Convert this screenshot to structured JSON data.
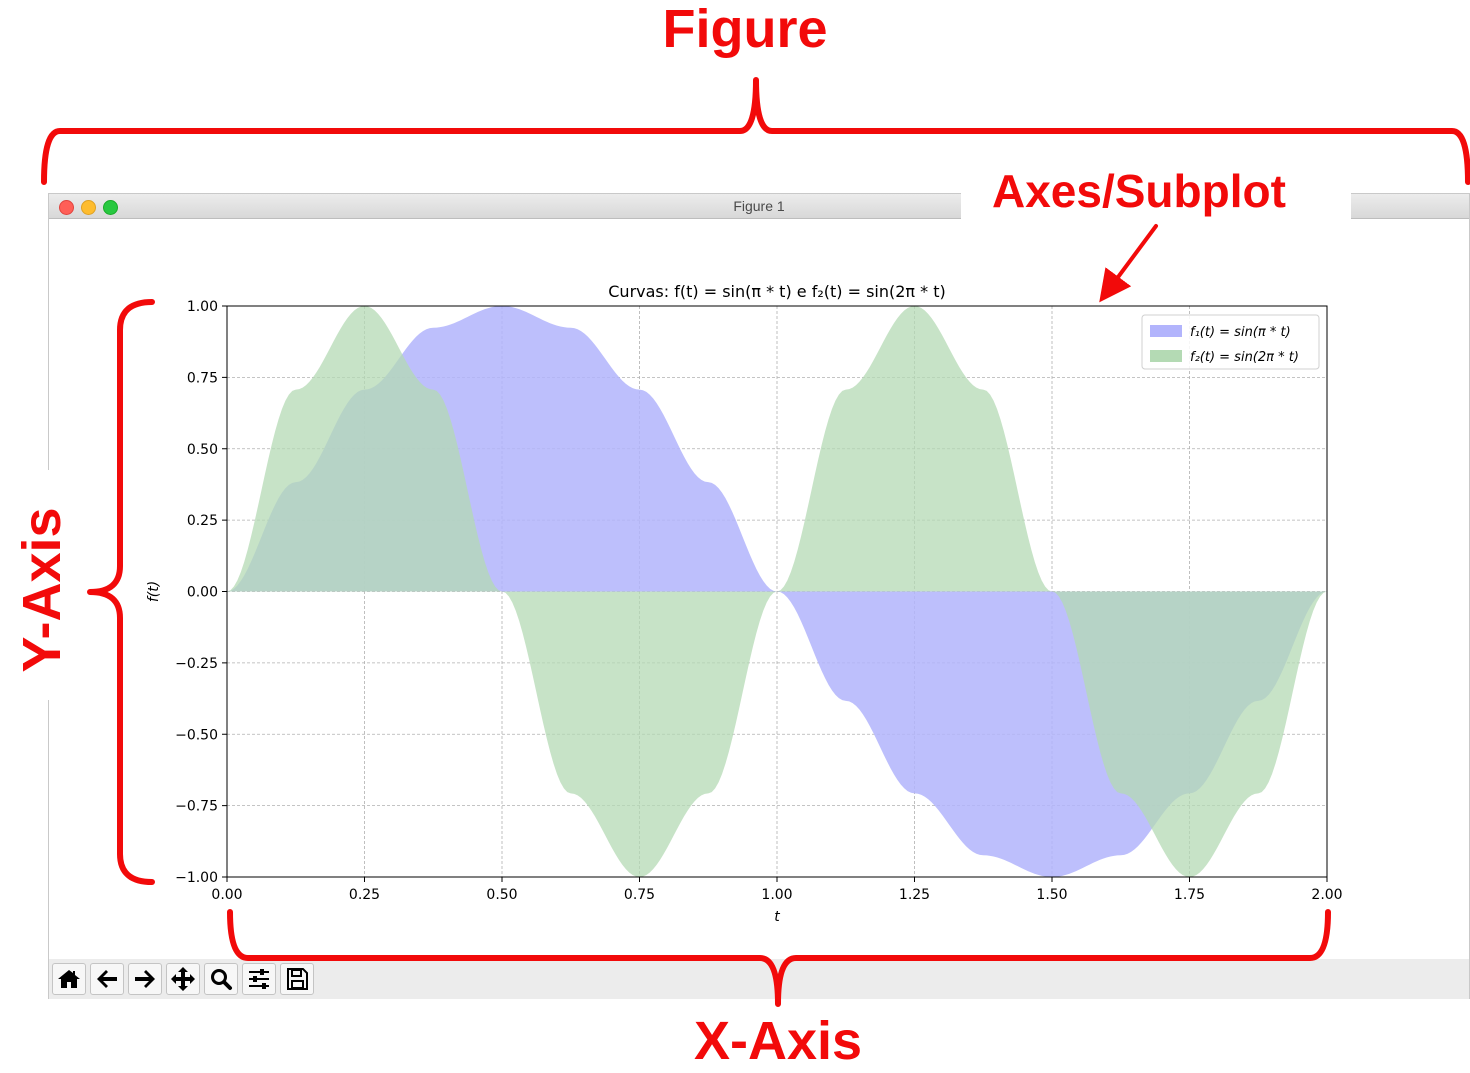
{
  "window": {
    "title": "Figure 1",
    "controls": [
      "close-icon",
      "minimize-icon",
      "maximize-icon"
    ]
  },
  "toolbar": {
    "buttons": [
      {
        "name": "home-button",
        "icon": "home-icon"
      },
      {
        "name": "back-button",
        "icon": "arrow-left-icon"
      },
      {
        "name": "forward-button",
        "icon": "arrow-right-icon"
      },
      {
        "name": "pan-button",
        "icon": "move-icon"
      },
      {
        "name": "zoom-button",
        "icon": "search-icon"
      },
      {
        "name": "configure-subplots-button",
        "icon": "sliders-icon"
      },
      {
        "name": "save-button",
        "icon": "floppy-disk-icon"
      }
    ]
  },
  "annotations": {
    "figure": "Figure",
    "axes": "Axes/Subplot",
    "x_axis": "X-Axis",
    "y_axis": "Y-Axis"
  },
  "colors": {
    "annotation": "#f20a0a",
    "f1_fill": "#b2b4fc",
    "f2_fill": "#b4dab4",
    "overlap": "#8aafbe"
  },
  "chart_data": {
    "type": "area",
    "title": "Curvas: f(t) = sin(π * t) e f₂(t) = sin(2π * t)",
    "xlabel": "t",
    "ylabel": "f(t)",
    "xlim": [
      0,
      2
    ],
    "ylim": [
      -1,
      1
    ],
    "x_ticks": [
      "0.00",
      "0.25",
      "0.50",
      "0.75",
      "1.00",
      "1.25",
      "1.50",
      "1.75",
      "2.00"
    ],
    "y_ticks": [
      "−1.00",
      "−0.75",
      "−0.50",
      "−0.25",
      "0.00",
      "0.25",
      "0.50",
      "0.75",
      "1.00"
    ],
    "grid": true,
    "legend": "top-right",
    "x": [
      0,
      0.125,
      0.25,
      0.375,
      0.5,
      0.625,
      0.75,
      0.875,
      1,
      1.125,
      1.25,
      1.375,
      1.5,
      1.625,
      1.75,
      1.875,
      2
    ],
    "series": [
      {
        "name": "f₁(t) = sin(π * t)",
        "values": [
          0,
          0.383,
          0.707,
          0.924,
          1,
          0.924,
          0.707,
          0.383,
          0,
          -0.383,
          -0.707,
          -0.924,
          -1,
          -0.924,
          -0.707,
          -0.383,
          0
        ]
      },
      {
        "name": "f₂(t) = sin(2π * t)",
        "values": [
          0,
          0.707,
          1,
          0.707,
          0,
          -0.707,
          -1,
          -0.707,
          0,
          0.707,
          1,
          0.707,
          0,
          -0.707,
          -1,
          -0.707,
          0
        ]
      }
    ]
  }
}
